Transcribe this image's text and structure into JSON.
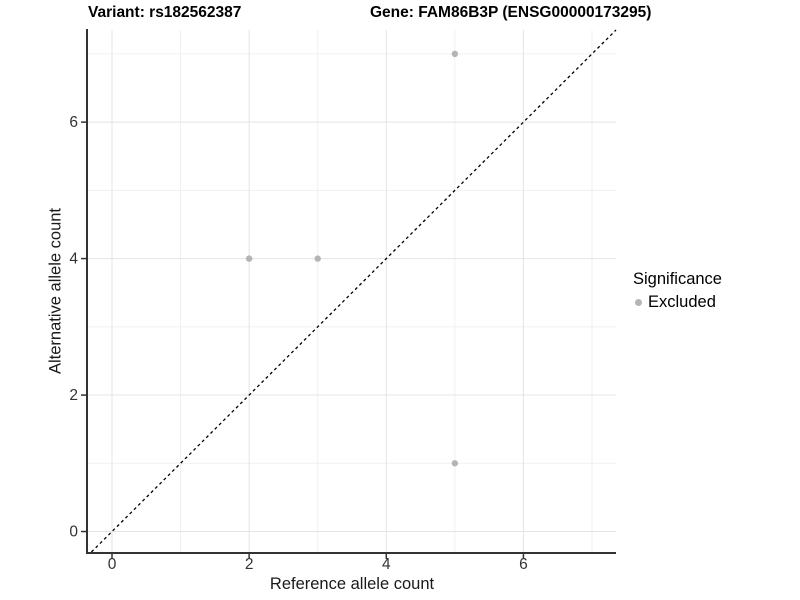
{
  "colors": {
    "background": "#ffffff",
    "grid_major": "#e4e4e4",
    "grid_minor": "#f0f0f0",
    "axis_line": "#333333",
    "tick_text": "#333333",
    "point": "#b4b4b4",
    "identity_line": "#000000"
  },
  "chart_data": {
    "type": "scatter",
    "titles": {
      "variant": "Variant: rs182562387",
      "gene": "Gene: FAM86B3P (ENSG00000173295)"
    },
    "xlabel": "Reference allele count",
    "ylabel": "Alternative allele count",
    "xlim": [
      -0.35,
      7.35
    ],
    "ylim": [
      -0.3,
      7.35
    ],
    "x_ticks": [
      0,
      2,
      4,
      6
    ],
    "y_ticks": [
      0,
      2,
      4,
      6
    ],
    "x_minor_ticks": [
      1,
      3,
      5,
      7
    ],
    "y_minor_ticks": [
      1,
      3,
      5,
      7
    ],
    "grid": "major+minor",
    "identity_line": {
      "equation": "y = x",
      "style": "dashed",
      "color": "#000000"
    },
    "series": [
      {
        "name": "Excluded",
        "color": "#b4b4b4",
        "points": [
          [
            2,
            4
          ],
          [
            3,
            4
          ],
          [
            5,
            7
          ],
          [
            5,
            1
          ]
        ]
      }
    ],
    "legend": {
      "title": "Significance",
      "position": "right",
      "items": [
        {
          "label": "Excluded",
          "color": "#b4b4b4",
          "marker": "dot-icon"
        }
      ]
    }
  }
}
